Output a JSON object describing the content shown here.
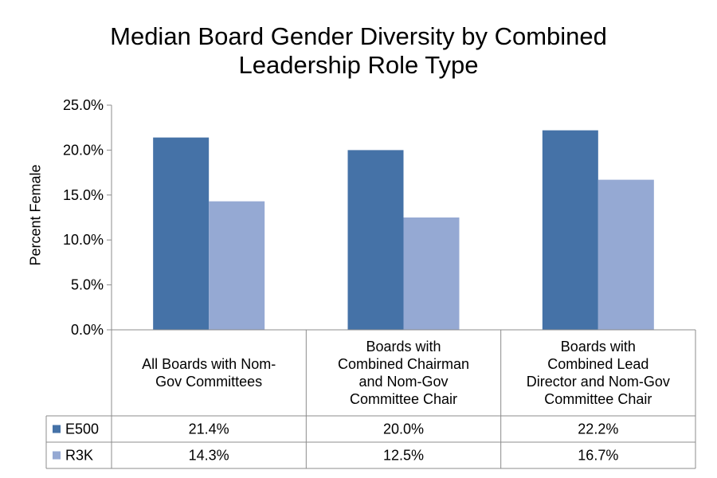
{
  "chart_data": {
    "type": "bar",
    "title": [
      "Median Board Gender Diversity by Combined",
      "Leadership Role Type"
    ],
    "ylabel": "Percent Female",
    "ylim": [
      0,
      25
    ],
    "yticks": [
      "0.0%",
      "5.0%",
      "10.0%",
      "15.0%",
      "20.0%",
      "25.0%"
    ],
    "ytick_values": [
      0,
      5,
      10,
      15,
      20,
      25
    ],
    "categories": [
      [
        "All Boards with Nom-",
        "Gov Committees"
      ],
      [
        "Boards with",
        "Combined Chairman",
        "and Nom-Gov",
        "Committee Chair"
      ],
      [
        "Boards with",
        "Combined Lead",
        "Director and Nom-Gov",
        "Committee Chair"
      ]
    ],
    "series": [
      {
        "name": "E500",
        "values": [
          21.4,
          20.0,
          22.2
        ],
        "labels": [
          "21.4%",
          "20.0%",
          "22.2%"
        ],
        "color": "#4572A7"
      },
      {
        "name": "R3K",
        "values": [
          14.3,
          12.5,
          16.7
        ],
        "labels": [
          "14.3%",
          "12.5%",
          "16.7%"
        ],
        "color": "#95A9D3"
      }
    ],
    "legend": "data-table",
    "grid": false
  }
}
